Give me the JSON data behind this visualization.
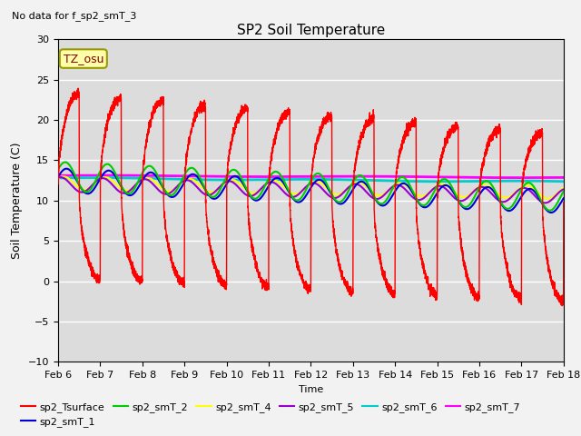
{
  "title": "SP2 Soil Temperature",
  "subtitle": "No data for f_sp2_smT_3",
  "ylabel": "Soil Temperature (C)",
  "xlabel": "Time",
  "tz_label": "TZ_osu",
  "ylim": [
    -10,
    30
  ],
  "xlim": [
    0,
    12
  ],
  "xtick_labels": [
    "Feb 6",
    "Feb 7",
    "Feb 8",
    "Feb 9",
    "Feb 10",
    "Feb 11",
    "Feb 12",
    "Feb 13",
    "Feb 14",
    "Feb 15",
    "Feb 16",
    "Feb 17",
    "Feb 18"
  ],
  "xtick_positions": [
    0,
    1,
    2,
    3,
    4,
    5,
    6,
    7,
    8,
    9,
    10,
    11,
    12
  ],
  "ytick_positions": [
    -10,
    -5,
    0,
    5,
    10,
    15,
    20,
    25,
    30
  ],
  "series_colors": {
    "sp2_Tsurface": "#ff0000",
    "sp2_smT_1": "#0000dd",
    "sp2_smT_2": "#00cc00",
    "sp2_smT_4": "#ffff00",
    "sp2_smT_5": "#9900cc",
    "sp2_smT_6": "#00cccc",
    "sp2_smT_7": "#ff00ff"
  },
  "bg_color": "#dcdcdc",
  "grid_color": "#ffffff"
}
